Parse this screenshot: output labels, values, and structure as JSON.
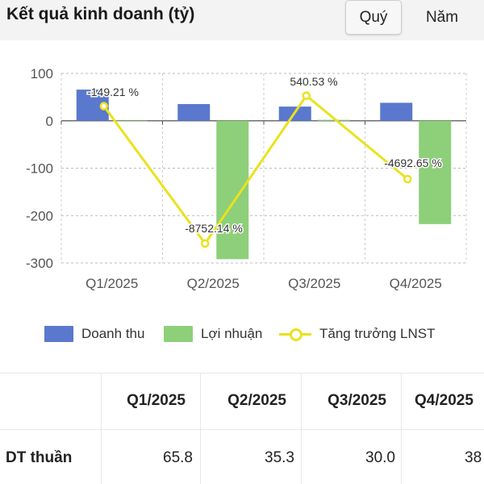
{
  "header": {
    "title": "Kết quả kinh doanh (tỷ)",
    "tabs": [
      {
        "label": "Quý",
        "active": true
      },
      {
        "label": "Năm",
        "active": false
      }
    ]
  },
  "chart_data": {
    "type": "bar",
    "categories": [
      "Q1/2025",
      "Q2/2025",
      "Q3/2025",
      "Q4/2025"
    ],
    "ylim": [
      -300,
      100
    ],
    "yticks": [
      100,
      0,
      -100,
      -200,
      -300
    ],
    "grid": true,
    "legend_position": "bottom",
    "series": [
      {
        "name": "Doanh thu",
        "kind": "bar",
        "color": "#5a78cd",
        "values": [
          65.8,
          35.3,
          30.0,
          38
        ]
      },
      {
        "name": "Lợi nhuận",
        "kind": "bar",
        "color": "#8ecf7a",
        "values": [
          0,
          -292,
          2,
          -218
        ]
      },
      {
        "name": "Tăng trưởng LNST",
        "kind": "line",
        "color": "#e9e21e",
        "values": [
          31,
          -259,
          53,
          -123
        ],
        "labels": [
          "-149.21 %",
          "-8752.14 %",
          "540.53 %",
          "-4692.65 %"
        ]
      }
    ]
  },
  "legend": [
    {
      "label": "Doanh thu"
    },
    {
      "label": "Lợi nhuận"
    },
    {
      "label": "Tăng trưởng LNST"
    }
  ],
  "table": {
    "headers": [
      "Q1/2025",
      "Q2/2025",
      "Q3/2025",
      "Q4/2025"
    ],
    "rows": [
      {
        "label": "DT thuần",
        "values": [
          "65.8",
          "35.3",
          "30.0",
          "38"
        ]
      }
    ]
  }
}
